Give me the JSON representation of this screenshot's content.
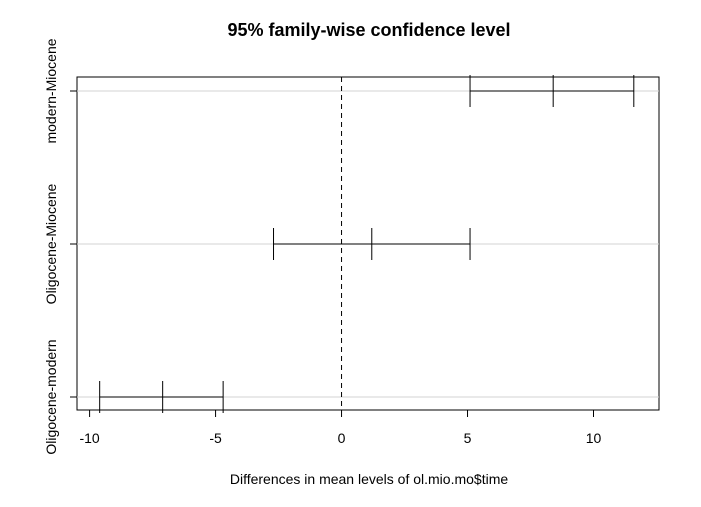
{
  "chart_data": {
    "type": "errorbar",
    "title": "95% family-wise confidence level",
    "xlabel": "Differences in mean levels of ol.mio.mo$time",
    "ylabel": "",
    "xlim": [
      -10.5,
      12.6
    ],
    "xticks": [
      -10,
      -5,
      0,
      5,
      10
    ],
    "xtick_labels": [
      "-10",
      "-5",
      "0",
      "5",
      "10"
    ],
    "reference_line": 0,
    "grid": "horizontal",
    "comparisons": [
      {
        "label": "modern-Miocene",
        "lwr": 5.1,
        "diff": 8.4,
        "upr": 11.6
      },
      {
        "label": "Oligocene-Miocene",
        "lwr": -2.7,
        "diff": 1.2,
        "upr": 5.1
      },
      {
        "label": "Oligocene-modern",
        "lwr": -9.6,
        "diff": -7.1,
        "upr": -4.7
      }
    ]
  }
}
